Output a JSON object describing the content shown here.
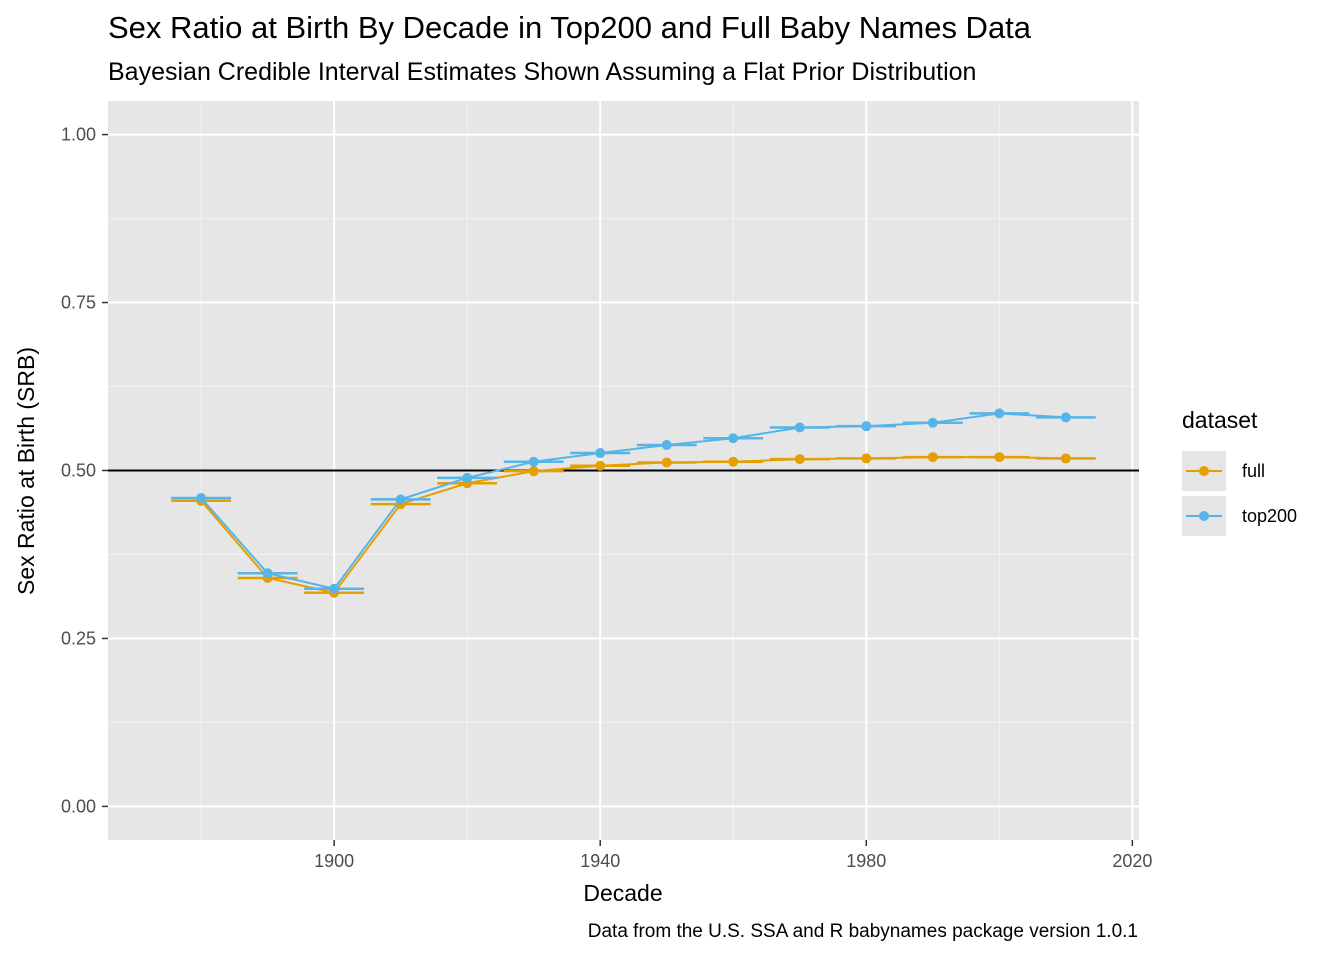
{
  "chart_data": {
    "type": "line",
    "title": "Sex Ratio at Birth By Decade in Top200 and Full Baby Names Data",
    "subtitle": "Bayesian Credible Interval Estimates Shown Assuming a Flat Prior Distribution",
    "caption": "Data from the U.S. SSA and R babynames package version 1.0.1",
    "xlabel": "Decade",
    "ylabel": "Sex Ratio at Birth (SRB)",
    "xlim": [
      1866,
      2021
    ],
    "ylim": [
      -0.05,
      1.05
    ],
    "x_ticks": [
      1900,
      1940,
      1980,
      2020
    ],
    "x_tick_labels": [
      "1900",
      "1940",
      "1980",
      "2020"
    ],
    "y_ticks": [
      0,
      0.25,
      0.5,
      0.75,
      1
    ],
    "y_tick_labels": [
      "0.00",
      "0.25",
      "0.50",
      "0.75",
      "1.00"
    ],
    "reference_line": 0.5,
    "grid": true,
    "legend": {
      "title": "dataset",
      "position": "right"
    },
    "x": [
      1880,
      1890,
      1900,
      1910,
      1920,
      1930,
      1940,
      1950,
      1960,
      1970,
      1980,
      1990,
      2000,
      2010
    ],
    "series": [
      {
        "name": "full",
        "color": "#E69F00",
        "values": [
          0.455,
          0.34,
          0.318,
          0.45,
          0.481,
          0.499,
          0.507,
          0.512,
          0.513,
          0.517,
          0.518,
          0.52,
          0.52,
          0.518
        ]
      },
      {
        "name": "top200",
        "color": "#56B4E9",
        "values": [
          0.459,
          0.347,
          0.324,
          0.457,
          0.489,
          0.513,
          0.526,
          0.538,
          0.548,
          0.564,
          0.566,
          0.571,
          0.585,
          0.579
        ]
      }
    ]
  }
}
